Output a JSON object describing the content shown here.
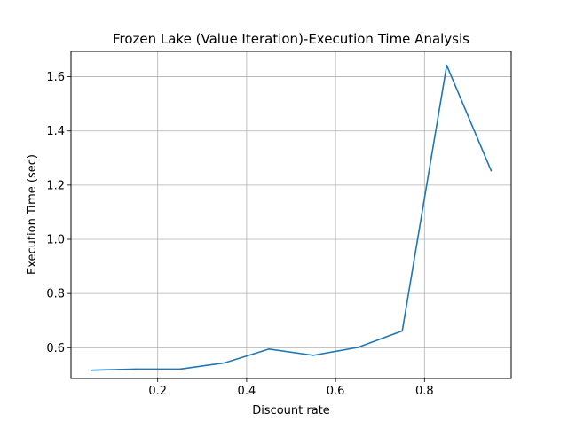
{
  "chart_data": {
    "type": "line",
    "title": "Frozen Lake (Value Iteration)-Execution Time Analysis",
    "xlabel": "Discount rate",
    "ylabel": "Execution Time (sec)",
    "xlim": [
      0.005,
      0.995
    ],
    "ylim": [
      0.4865,
      1.6935
    ],
    "xticks": [
      0.2,
      0.4,
      0.6,
      0.8
    ],
    "yticks": [
      0.6,
      0.8,
      1.0,
      1.2,
      1.4,
      1.6
    ],
    "xtick_labels": [
      "0.2",
      "0.4",
      "0.6",
      "0.8"
    ],
    "ytick_labels": [
      "0.6",
      "0.8",
      "1.0",
      "1.2",
      "1.4",
      "1.6"
    ],
    "grid": true,
    "series": [
      {
        "color": "#1f77b4",
        "x": [
          0.05,
          0.15,
          0.25,
          0.35,
          0.45,
          0.55,
          0.65,
          0.75,
          0.85,
          0.95
        ],
        "y": [
          0.517,
          0.521,
          0.521,
          0.544,
          0.595,
          0.572,
          0.601,
          0.662,
          1.642,
          1.253
        ]
      }
    ]
  }
}
